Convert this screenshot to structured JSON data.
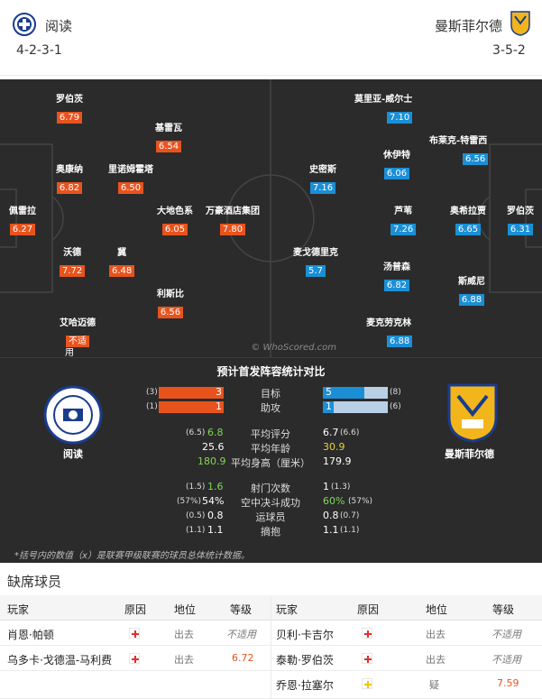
{
  "home": {
    "name": "阅读",
    "formation": "4-2-3-1",
    "badge": "reading-crest"
  },
  "away": {
    "name": "曼斯菲尔德",
    "formation": "3-5-2",
    "badge": "mansfield-crest"
  },
  "pitch": {
    "watermark": "© WhoScored.com",
    "home_players": [
      {
        "name": "罗伯茨",
        "rating": "6.79"
      },
      {
        "name": "基雷瓦",
        "rating": "6.54"
      },
      {
        "name": "奥康纳",
        "rating": "6.82"
      },
      {
        "name": "里诺姆霍塔",
        "rating": "6.50"
      },
      {
        "name": "佩雷拉",
        "rating": "6.27"
      },
      {
        "name": "大地色系",
        "rating": "6.05"
      },
      {
        "name": "万豪酒店集团",
        "rating": "7.80"
      },
      {
        "name": "沃德",
        "rating": "7.72"
      },
      {
        "name": "冀",
        "rating": "6.48"
      },
      {
        "name": "利斯比",
        "rating": "6.56"
      },
      {
        "name": "艾哈迈德",
        "rating": "不适",
        "extra": "用"
      }
    ],
    "away_players": [
      {
        "name": "莫里亚-威尔士",
        "rating": "7.10"
      },
      {
        "name": "布莱克-特雷西",
        "rating": "6.56"
      },
      {
        "name": "休伊特",
        "rating": "6.06"
      },
      {
        "name": "史密斯",
        "rating": "7.16"
      },
      {
        "name": "罗伯茨",
        "rating": "6.31"
      },
      {
        "name": "芦苇",
        "rating": "7.26"
      },
      {
        "name": "奥希拉贾",
        "rating": "6.65"
      },
      {
        "name": "麦戈德里克",
        "rating": "5.7"
      },
      {
        "name": "汤普森",
        "rating": "6.82"
      },
      {
        "name": "斯威尼",
        "rating": "6.88"
      },
      {
        "name": "麦克劳克林",
        "rating": "6.88"
      }
    ]
  },
  "stats": {
    "title": "预计首发阵容统计对比",
    "goals": {
      "label": "目标",
      "home": "3",
      "home_season": "(3)",
      "away": "5",
      "away_season": "(8)"
    },
    "assists": {
      "label": "助攻",
      "home": "1",
      "home_season": "(1)",
      "away": "1",
      "away_season": "(6)"
    },
    "avg_rating": {
      "label": "平均评分",
      "home_season": "(6.5)",
      "home": "6.8",
      "away": "6.7",
      "away_season": "(6.6)"
    },
    "avg_age": {
      "label": "平均年龄",
      "home": "25.6",
      "away": "30.9"
    },
    "avg_height": {
      "label": "平均身高（厘米）",
      "home": "180.9",
      "away": "179.9"
    },
    "shots": {
      "label": "射门次数",
      "home_season": "(1.5)",
      "home": "1.6",
      "away": "1",
      "away_season": "(1.3)"
    },
    "aerials": {
      "label": "空中决斗成功",
      "home_season": "(57%)",
      "home": "54%",
      "away": "60%",
      "away_season": "(57%)"
    },
    "dribbled": {
      "label": "运球员",
      "home_season": "(0.5)",
      "home": "0.8",
      "away": "0.8",
      "away_season": "(0.7)"
    },
    "tackles": {
      "label": "摘抱",
      "home_season": "(1.1)",
      "home": "1.1",
      "away": "1.1",
      "away_season": "(1.1)"
    },
    "footnote": "*括号内的数值（x）是联赛甲级联赛的球员总体统计数据。"
  },
  "missing": {
    "title": "缺席球员",
    "headers": {
      "player": "玩家",
      "reason": "原因",
      "status": "地位",
      "rating": "等级"
    },
    "home_rows": [
      {
        "player": "肖恩·帕顿",
        "reason_icon": "injury-cross-icon",
        "status": "出去",
        "rating": "不适用"
      },
      {
        "player": "乌多卡·戈德温-马利费",
        "reason_icon": "injury-cross-icon",
        "status": "出去",
        "rating": "6.72"
      }
    ],
    "away_rows": [
      {
        "player": "贝利·卡吉尔",
        "reason_icon": "injury-cross-icon",
        "status": "出去",
        "rating": "不适用"
      },
      {
        "player": "泰勒·罗伯茨",
        "reason_icon": "injury-cross-icon",
        "status": "出去",
        "rating": "不适用"
      },
      {
        "player": "乔恩·拉塞尔",
        "reason_icon": "doubtful-cross-icon",
        "status": "疑",
        "rating": "7.59"
      }
    ]
  },
  "colors": {
    "home_accent": "#e8531d",
    "away_accent": "#1b8fd6",
    "pitch": "#2b2b2b"
  }
}
